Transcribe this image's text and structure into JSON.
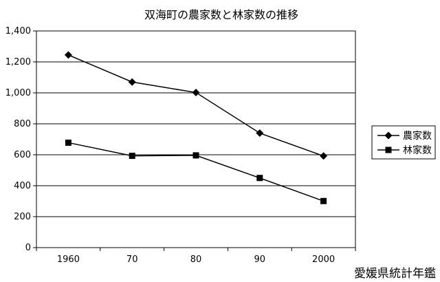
{
  "chart_data": {
    "type": "line",
    "title": "双海町の農家数と林家数の推移",
    "categories": [
      "1960",
      "70",
      "80",
      "90",
      "2000"
    ],
    "series": [
      {
        "name": "農家数",
        "values": [
          1245,
          1070,
          1002,
          740,
          592
        ],
        "marker": "diamond"
      },
      {
        "name": "林家数",
        "values": [
          678,
          593,
          596,
          450,
          301
        ],
        "marker": "square"
      }
    ],
    "ylim": [
      0,
      1400
    ],
    "yticks": [
      "0",
      "200",
      "400",
      "600",
      "800",
      "1,000",
      "1,200",
      "1,400"
    ],
    "grid": true,
    "legend": "right",
    "line_color": "#000000",
    "source_note": "愛媛県統計年鑑"
  }
}
